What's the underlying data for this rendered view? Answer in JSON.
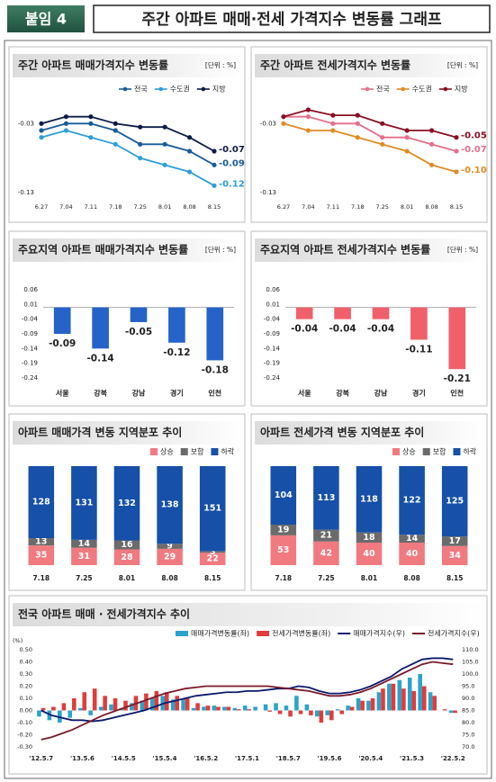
{
  "header": {
    "tag": "붙임 4",
    "title": "주간 아파트 매매·전세 가격지수 변동률 그래프"
  },
  "chart_data": [
    {
      "type": "line",
      "title": "주간 아파트 매매가격지수 변동률",
      "unit": "[단위 : %]",
      "categories": [
        "6.27",
        "7.04",
        "7.11",
        "7.18",
        "7.25",
        "8.01",
        "8.08",
        "8.15"
      ],
      "series": [
        {
          "name": "전국",
          "color": "#1a5c9a",
          "values": [
            -0.04,
            -0.03,
            -0.03,
            -0.04,
            -0.06,
            -0.06,
            -0.07,
            -0.09
          ]
        },
        {
          "name": "수도권",
          "color": "#2d9fd8",
          "values": [
            -0.05,
            -0.04,
            -0.05,
            -0.06,
            -0.08,
            -0.09,
            -0.1,
            -0.12
          ]
        },
        {
          "name": "지방",
          "color": "#0d1c48",
          "values": [
            -0.03,
            -0.02,
            -0.02,
            -0.03,
            -0.035,
            -0.035,
            -0.05,
            -0.07
          ]
        }
      ],
      "end_labels": true,
      "ylim": [
        -0.13,
        -0.01
      ],
      "yticks": [
        -0.03,
        -0.13
      ]
    },
    {
      "type": "line",
      "title": "주간 아파트 전세가격지수 변동률",
      "unit": "[단위 : %]",
      "categories": [
        "6.27",
        "7.04",
        "7.11",
        "7.18",
        "7.25",
        "8.01",
        "8.08",
        "8.15"
      ],
      "series": [
        {
          "name": "전국",
          "color": "#e56f8c",
          "values": [
            -0.02,
            -0.02,
            -0.03,
            -0.03,
            -0.05,
            -0.05,
            -0.06,
            -0.07
          ]
        },
        {
          "name": "수도권",
          "color": "#e08b24",
          "values": [
            -0.03,
            -0.04,
            -0.04,
            -0.05,
            -0.06,
            -0.07,
            -0.09,
            -0.1
          ],
          "value_labels": [
            null,
            null,
            null,
            null,
            null,
            null,
            null,
            "-0.10"
          ]
        },
        {
          "name": "지방",
          "color": "#8a0f22",
          "values": [
            -0.02,
            -0.01,
            -0.018,
            -0.018,
            -0.03,
            -0.04,
            -0.04,
            -0.05
          ]
        }
      ],
      "end_labels": true,
      "ylim": [
        -0.13,
        -0.01
      ],
      "yticks": [
        -0.03,
        -0.13
      ]
    },
    {
      "type": "bar",
      "title": "주요지역 아파트 매매가격지수 변동률",
      "unit": "[단위 : %]",
      "categories": [
        "서울",
        "강북",
        "강남",
        "경기",
        "인천"
      ],
      "values": [
        -0.09,
        -0.14,
        -0.05,
        -0.12,
        -0.18
      ],
      "color": "#2563c9",
      "ylim": [
        -0.24,
        0.06
      ],
      "yticks": [
        0.06,
        0.01,
        -0.04,
        -0.09,
        -0.14,
        -0.19,
        -0.24
      ]
    },
    {
      "type": "bar",
      "title": "주요지역 아파트 전세가격지수 변동률",
      "unit": "[단위 : %]",
      "categories": [
        "서울",
        "강북",
        "강남",
        "경기",
        "인천"
      ],
      "values": [
        -0.04,
        -0.04,
        -0.04,
        -0.11,
        -0.21
      ],
      "color": "#f0606a",
      "ylim": [
        -0.24,
        0.06
      ],
      "yticks": [
        0.06,
        0.01,
        -0.04,
        -0.09,
        -0.14,
        -0.19,
        -0.24
      ]
    },
    {
      "type": "stacked_bar",
      "title": "아파트 매매가격 변동 지역분포 추이",
      "categories": [
        "7.18",
        "7.25",
        "8.01",
        "8.08",
        "8.15"
      ],
      "series": [
        {
          "name": "상승",
          "color": "#f07a80",
          "values": [
            35,
            31,
            28,
            29,
            22
          ]
        },
        {
          "name": "보합",
          "color": "#6b6b6b",
          "values": [
            13,
            14,
            16,
            9,
            3
          ]
        },
        {
          "name": "하락",
          "color": "#1650a8",
          "values": [
            128,
            131,
            132,
            138,
            151
          ]
        }
      ]
    },
    {
      "type": "stacked_bar",
      "title": "아파트 전세가격 변동 지역분포 추이",
      "categories": [
        "7.18",
        "7.25",
        "8.01",
        "8.08",
        "8.15"
      ],
      "series": [
        {
          "name": "상승",
          "color": "#f07a80",
          "values": [
            53,
            42,
            40,
            40,
            34
          ]
        },
        {
          "name": "보합",
          "color": "#6b6b6b",
          "values": [
            19,
            21,
            18,
            14,
            17
          ]
        },
        {
          "name": "하락",
          "color": "#1650a8",
          "values": [
            104,
            113,
            118,
            122,
            125
          ]
        }
      ]
    },
    {
      "type": "combo",
      "title": "전국 아파트 매매 · 전세가격지수 추이",
      "y_label": "(%)",
      "categories": [
        "'12.5.7",
        null,
        null,
        null,
        "'13.5.6",
        null,
        null,
        null,
        "'14.5.5",
        null,
        null,
        null,
        "'15.5.4",
        null,
        null,
        null,
        "'16.5.2",
        null,
        null,
        null,
        "'17.5.1",
        null,
        null,
        null,
        "'18.5.7",
        null,
        null,
        null,
        "'19.5.6",
        null,
        null,
        null,
        "'20.5.4",
        null,
        null,
        null,
        "'21.5.3",
        null,
        null,
        null,
        "'22.5.2"
      ],
      "series": [
        {
          "name": "매매가격변동률(좌)",
          "kind": "bar",
          "color": "#2aa3cc",
          "values": [
            -0.05,
            -0.08,
            -0.1,
            -0.06,
            0.02,
            -0.04,
            0.03,
            0.05,
            0.02,
            0.06,
            0.08,
            0.1,
            0.12,
            0.09,
            0.1,
            0.02,
            0.03,
            0.04,
            0.03,
            0.02,
            0.04,
            0.03,
            0.05,
            0.06,
            0.04,
            0.12,
            0.05,
            -0.05,
            -0.04,
            0.01,
            0.04,
            0.1,
            0.08,
            0.15,
            0.22,
            0.25,
            0.27,
            0.3,
            0.15,
            0.0,
            -0.02
          ]
        },
        {
          "name": "전세가격변동률(좌)",
          "kind": "bar",
          "color": "#e03c3c",
          "values": [
            0.02,
            0.03,
            0.06,
            0.1,
            0.15,
            0.18,
            0.12,
            0.1,
            0.08,
            0.12,
            0.14,
            0.16,
            0.15,
            0.12,
            0.1,
            0.06,
            0.04,
            0.03,
            0.03,
            0.01,
            0.01,
            0.0,
            -0.01,
            -0.03,
            -0.05,
            -0.03,
            -0.04,
            -0.1,
            -0.08,
            -0.03,
            0.03,
            0.08,
            0.1,
            0.18,
            0.22,
            0.18,
            0.16,
            0.2,
            0.12,
            0.01,
            -0.02
          ]
        },
        {
          "name": "매매가격지수(우)",
          "kind": "line",
          "axis": "y2",
          "color": "#0a1a6e",
          "values": [
            85,
            83,
            82,
            81,
            81,
            80.5,
            81,
            82,
            83,
            84,
            85,
            86.5,
            88,
            89,
            90,
            91,
            91.5,
            92,
            92.5,
            92.5,
            93,
            93,
            93.5,
            94,
            94,
            95,
            94.5,
            93,
            92,
            92,
            92.5,
            93.5,
            95,
            97,
            99,
            102,
            104,
            106,
            106.5,
            106.5,
            106
          ]
        },
        {
          "name": "전세가격지수(우)",
          "kind": "line",
          "axis": "y2",
          "color": "#7a1a2a",
          "values": [
            73,
            74,
            75.5,
            77,
            79,
            81,
            83,
            84.5,
            86,
            87.5,
            89,
            90.5,
            92,
            93,
            94,
            94.5,
            95,
            95,
            95,
            95,
            95,
            95,
            95,
            94.5,
            94,
            93.5,
            93,
            92,
            91,
            91,
            91.5,
            92.5,
            94,
            96,
            98,
            100,
            102,
            104,
            105,
            104.5,
            104
          ]
        }
      ],
      "ylim": [
        -0.3,
        0.5
      ],
      "yticks": [
        {
          "value": 0.5,
          "label": "0.50"
        },
        {
          "value": 0.4,
          "label": "0.40"
        },
        {
          "value": 0.3,
          "label": "0.30"
        },
        {
          "value": 0.2,
          "label": "0.20"
        },
        {
          "value": 0.1,
          "label": "0.10"
        },
        {
          "value": 0,
          "label": "0.00"
        },
        {
          "value": -0.1,
          "label": "-0.10"
        },
        {
          "value": -0.2,
          "label": "-0.20"
        },
        {
          "value": -0.3,
          "label": "-0.30"
        }
      ],
      "y2lim": [
        70,
        110
      ],
      "y2ticks": [
        {
          "value": 110,
          "label": "110.0"
        },
        {
          "value": 105,
          "label": "105.0"
        },
        {
          "value": 100,
          "label": "100.0"
        },
        {
          "value": 95,
          "label": "95.0"
        },
        {
          "value": 90,
          "label": "90.0"
        },
        {
          "value": 85,
          "label": "85.0"
        },
        {
          "value": 80,
          "label": "80.0"
        },
        {
          "value": 75,
          "label": "75.0"
        },
        {
          "value": 70,
          "label": "70.0"
        }
      ]
    }
  ]
}
